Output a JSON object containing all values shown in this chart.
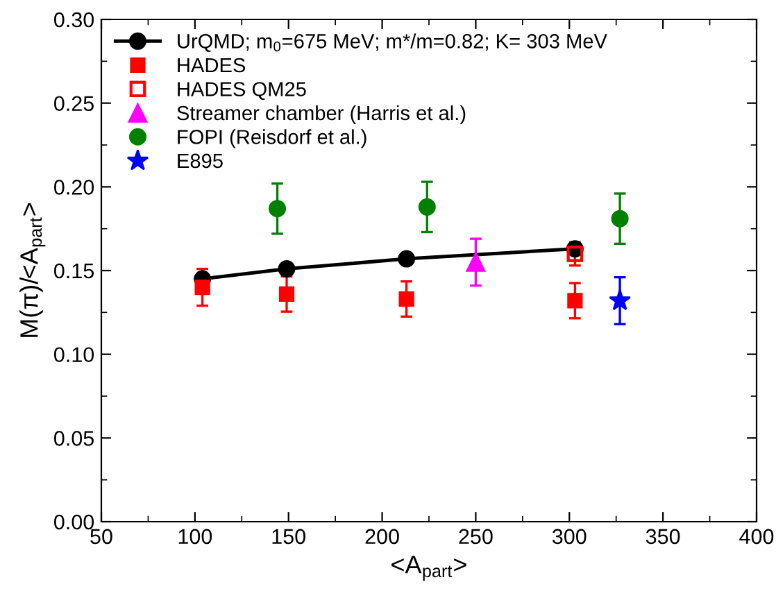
{
  "chart_data": {
    "type": "scatter",
    "xlabel": "<A$_{part}$>",
    "ylabel": "M(π)/<A$_{part}$>",
    "xlim": [
      50,
      400
    ],
    "xticks": [
      50,
      100,
      150,
      200,
      250,
      300,
      350,
      400
    ],
    "ylim": [
      0,
      0.3
    ],
    "yticks": [
      {
        "value": 0,
        "label": "0.00"
      },
      {
        "value": 0.05,
        "label": "0.05"
      },
      {
        "value": 0.1,
        "label": "0.10"
      },
      {
        "value": 0.15,
        "label": "0.15"
      },
      {
        "value": 0.2,
        "label": "0.20"
      },
      {
        "value": 0.25,
        "label": "0.25"
      },
      {
        "value": 0.3,
        "label": "0.30"
      }
    ],
    "legend": "top left",
    "grid": false,
    "series": [
      {
        "name": "UrQMD; m$_{0}$=675 MeV; m*/m=0.82; K= 303 MeV",
        "type": "line",
        "marker": "circle",
        "color": "#000000",
        "x": [
          104,
          149,
          213,
          303
        ],
        "values": [
          0.145,
          0.151,
          0.157,
          0.163
        ]
      },
      {
        "name": "HADES",
        "marker": "square",
        "color": "#ff0000",
        "x": [
          104,
          149,
          213,
          303
        ],
        "values": [
          0.14,
          0.136,
          0.133,
          0.132
        ],
        "errors": [
          0.011,
          0.0105,
          0.0105,
          0.0105
        ]
      },
      {
        "name": "HADES QM25",
        "marker": "square",
        "color": "#ff0000",
        "x": [
          303
        ],
        "values": [
          0.16
        ],
        "errors": [
          0.007
        ]
      },
      {
        "name": "Streamer chamber (Harris et al.)",
        "marker": "triangle",
        "color": "#ff00ff",
        "x": [
          250
        ],
        "values": [
          0.155
        ],
        "errors": [
          0.014
        ]
      },
      {
        "name": "FOPI (Reisdorf et al.)",
        "marker": "circle",
        "color": "#008000",
        "x": [
          144,
          224,
          327
        ],
        "values": [
          0.187,
          0.188,
          0.181
        ],
        "errors": [
          0.015,
          0.015,
          0.015
        ]
      },
      {
        "name": "E895",
        "marker": "star",
        "color": "#0000ff",
        "x": [
          327
        ],
        "values": [
          0.132
        ],
        "errors": [
          0.014
        ]
      }
    ]
  }
}
